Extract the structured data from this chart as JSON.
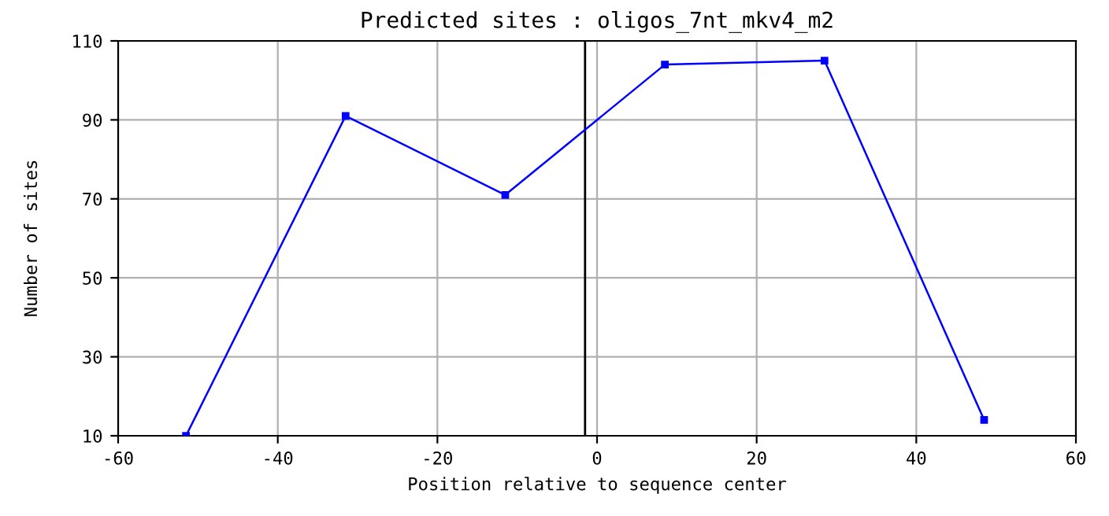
{
  "chart_data": {
    "type": "line",
    "title": "Predicted sites : oligos_7nt_mkv4_m2",
    "xlabel": "Position relative to sequence center",
    "ylabel": "Number of sites",
    "x": [
      -51.5,
      -31.5,
      -11.5,
      8.5,
      28.5,
      48.5
    ],
    "series": [
      {
        "color": "#0000ff",
        "values": [
          10,
          91,
          71,
          104,
          105,
          14
        ]
      }
    ],
    "xlim": [
      -60,
      60
    ],
    "xticks": [
      -60,
      -40,
      -20,
      0,
      20,
      40,
      60
    ],
    "ylim": [
      10,
      110
    ],
    "yticks": [
      10,
      30,
      50,
      70,
      90,
      110
    ],
    "ref_lines": [
      {
        "axis": "x",
        "value": -1.5,
        "label": null,
        "color": "#000000"
      }
    ],
    "grid": true,
    "marker": "square",
    "line_style": "solid",
    "legend": false
  }
}
